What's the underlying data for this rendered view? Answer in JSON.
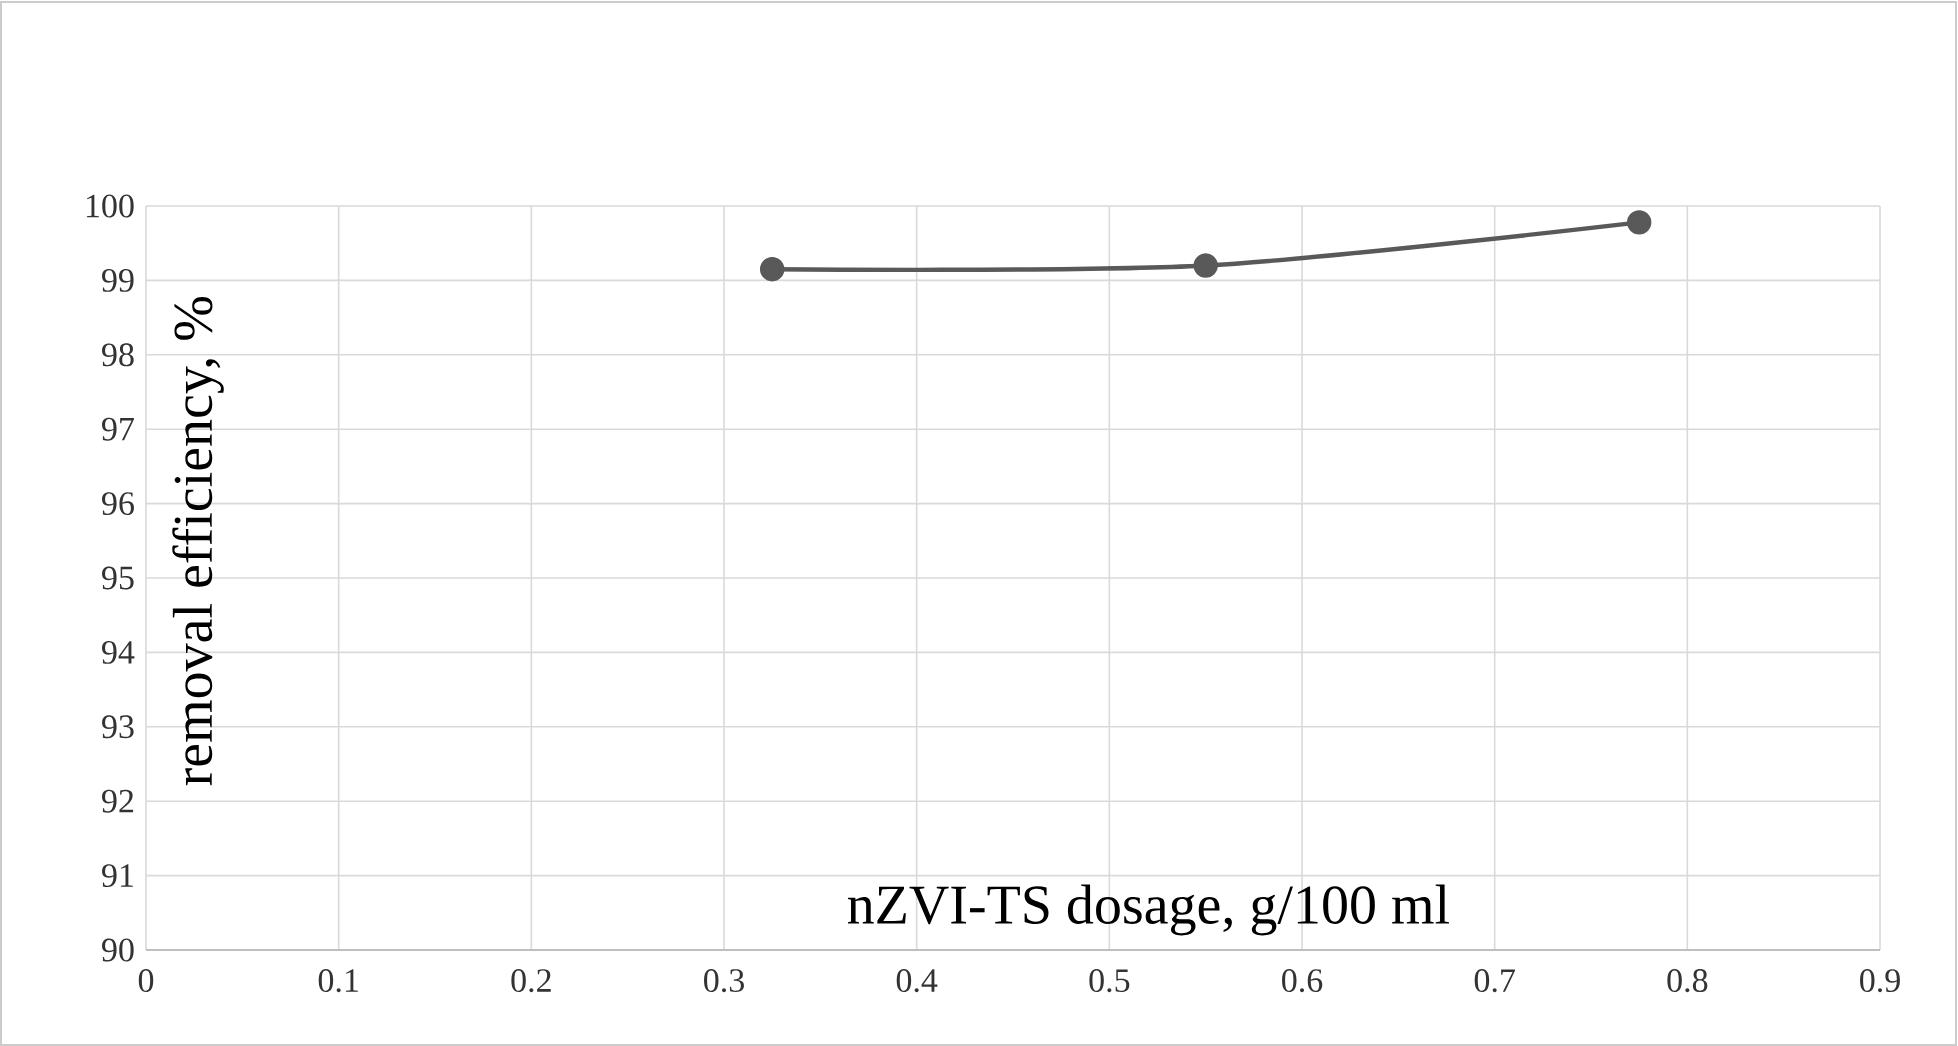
{
  "chart_data": {
    "type": "line",
    "xlabel": "nZVI-TS dosage, g/100 ml",
    "ylabel": "removal efficiency, %",
    "x": [
      0.325,
      0.55,
      0.775
    ],
    "series": [
      {
        "color": "#595959",
        "values": [
          99.15,
          99.2,
          99.78
        ]
      }
    ],
    "xlim": [
      0,
      0.9
    ],
    "xticks": [
      0,
      0.1,
      0.2,
      0.3,
      0.4,
      0.5,
      0.6,
      0.7,
      0.8,
      0.9
    ],
    "ylim": [
      90,
      100
    ],
    "yticks": [
      90,
      91,
      92,
      93,
      94,
      95,
      96,
      97,
      98,
      99,
      100
    ],
    "grid": true,
    "marker": "circle",
    "line_style": "solid"
  }
}
